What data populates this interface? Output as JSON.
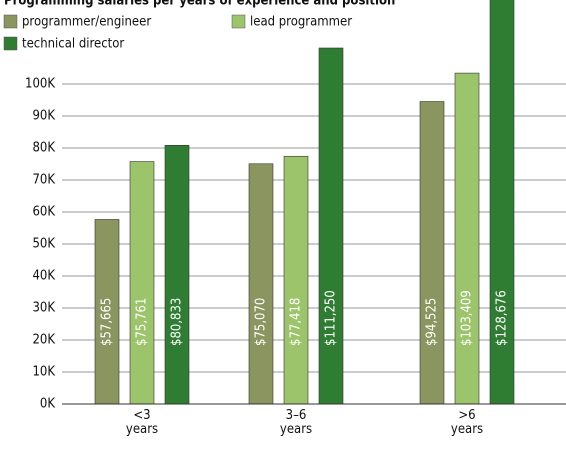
{
  "chart_data": {
    "type": "bar",
    "title": "Programming salaries per years of experience and position",
    "categories": [
      "<3 years",
      "3–6 years",
      ">6 years"
    ],
    "series": [
      {
        "name": "programmer/engineer",
        "color": "#8b9560",
        "values": [
          57665,
          75070,
          94525
        ],
        "value_labels": [
          "$57,665",
          "$75,070",
          "$94,525"
        ]
      },
      {
        "name": "lead programmer",
        "color": "#9cc46b",
        "values": [
          75761,
          77418,
          103409
        ],
        "value_labels": [
          "$75,761",
          "$77,418",
          "$103,409"
        ]
      },
      {
        "name": "technical director",
        "color": "#2f7d32",
        "values": [
          80833,
          111250,
          128676
        ],
        "value_labels": [
          "$80,833",
          "$111,250",
          "$128,676"
        ]
      }
    ],
    "ylim": [
      0,
      100000
    ],
    "yticks": [
      {
        "value": 0,
        "label": "0K"
      },
      {
        "value": 10000,
        "label": "10K"
      },
      {
        "value": 20000,
        "label": "20K"
      },
      {
        "value": 30000,
        "label": "30K"
      },
      {
        "value": 40000,
        "label": "40K"
      },
      {
        "value": 50000,
        "label": "50K"
      },
      {
        "value": 60000,
        "label": "60K"
      },
      {
        "value": 70000,
        "label": "70K"
      },
      {
        "value": 80000,
        "label": "80K"
      },
      {
        "value": 90000,
        "label": "90K"
      },
      {
        "value": 100000,
        "label": "100K"
      }
    ],
    "grid": true
  }
}
